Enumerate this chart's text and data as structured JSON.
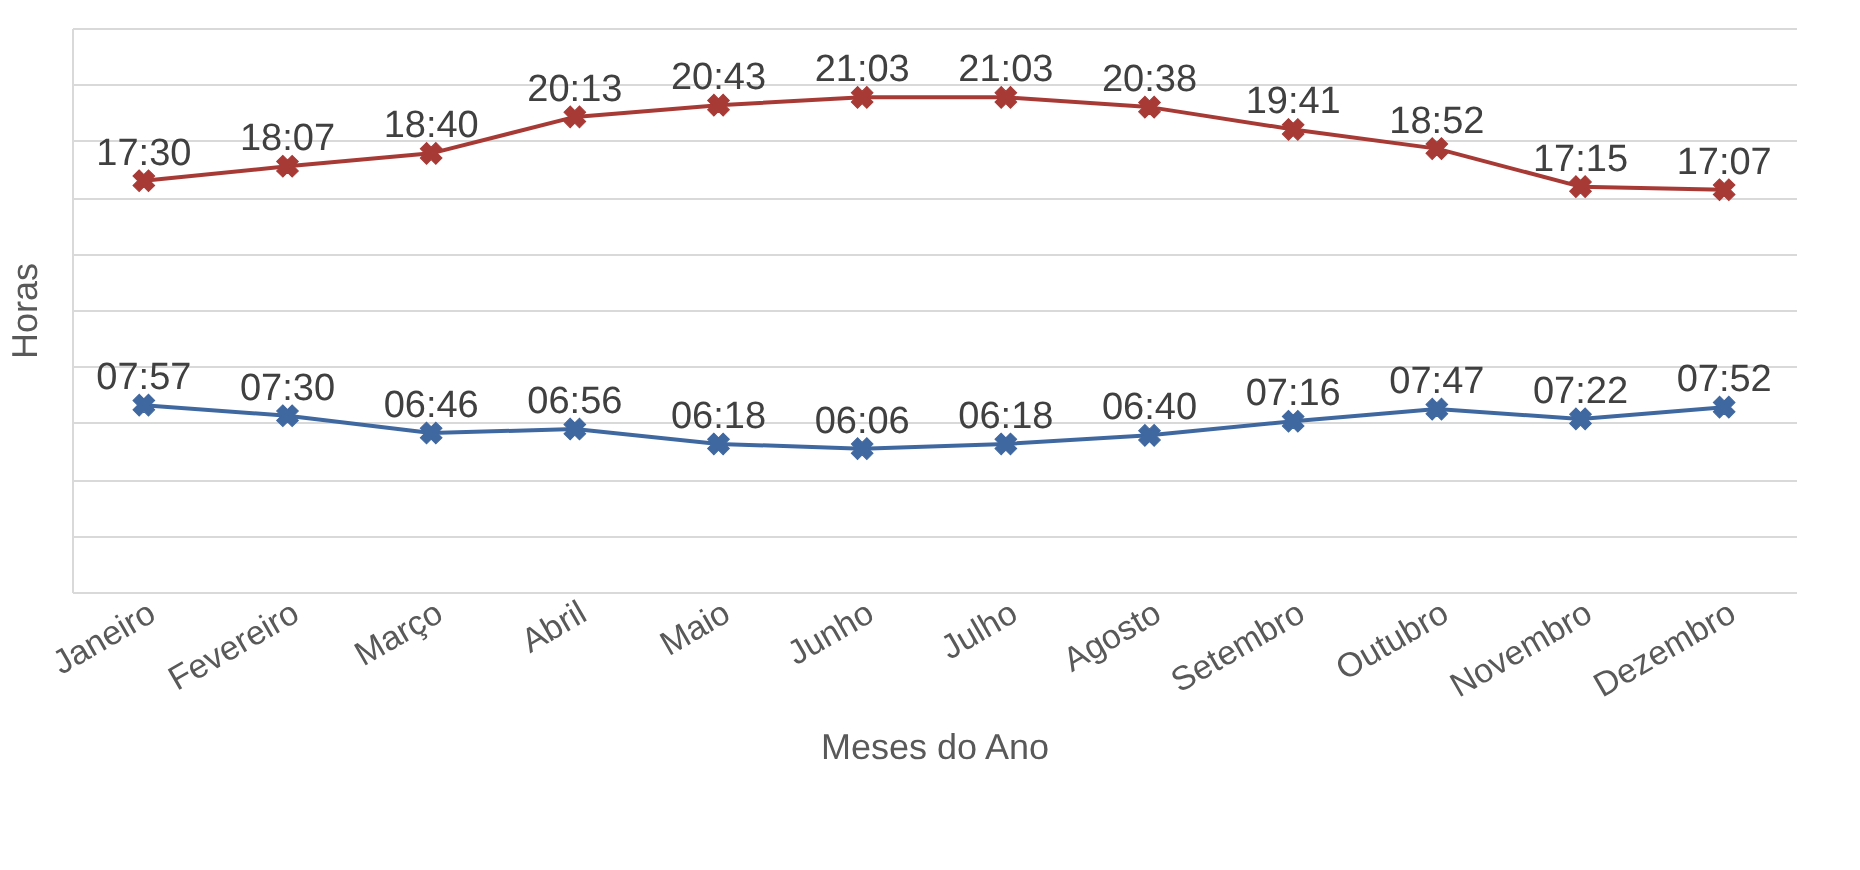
{
  "chart_data": {
    "type": "line",
    "xlabel": "Meses do Ano",
    "ylabel": "Horas",
    "categories": [
      "Janeiro",
      "Fevereiro",
      "Março",
      "Abril",
      "Maio",
      "Junho",
      "Julho",
      "Agosto",
      "Setembro",
      "Outubro",
      "Novembro",
      "Dezembro"
    ],
    "ylim": [
      0,
      24
    ],
    "yticks": [
      {
        "value": 0,
        "label": null
      },
      {
        "value": 2.4,
        "label": null
      },
      {
        "value": 4.8,
        "label": null
      },
      {
        "value": 7.2,
        "label": null
      },
      {
        "value": 9.6,
        "label": null
      },
      {
        "value": 12,
        "label": null
      },
      {
        "value": 14.4,
        "label": null
      },
      {
        "value": 16.8,
        "label": null
      },
      {
        "value": 19.2,
        "label": null
      },
      {
        "value": 21.6,
        "label": null
      },
      {
        "value": 24,
        "label": null
      }
    ],
    "tick_labels": "x",
    "grid": "y",
    "marker": "cross",
    "line_style": "solid",
    "series": [
      {
        "color": "#4068a0",
        "values": [
          7.95,
          7.5,
          6.7667,
          6.9333,
          6.3,
          6.1,
          6.3,
          6.6667,
          7.2667,
          7.7833,
          7.3667,
          7.8667
        ],
        "value_labels": [
          "07:57",
          "07:30",
          "06:46",
          "06:56",
          "06:18",
          "06:06",
          "06:18",
          "06:40",
          "07:16",
          "07:47",
          "07:22",
          "07:52"
        ]
      },
      {
        "color": "#a83a36",
        "values": [
          17.5,
          18.1167,
          18.6667,
          20.2167,
          20.7167,
          21.05,
          21.05,
          20.6333,
          19.6833,
          18.8667,
          17.25,
          17.1167
        ],
        "value_labels": [
          "17:30",
          "18:07",
          "18:40",
          "20:13",
          "20:43",
          "21:03",
          "21:03",
          "20:38",
          "19:41",
          "18:52",
          "17:15",
          "17:07"
        ]
      }
    ]
  }
}
